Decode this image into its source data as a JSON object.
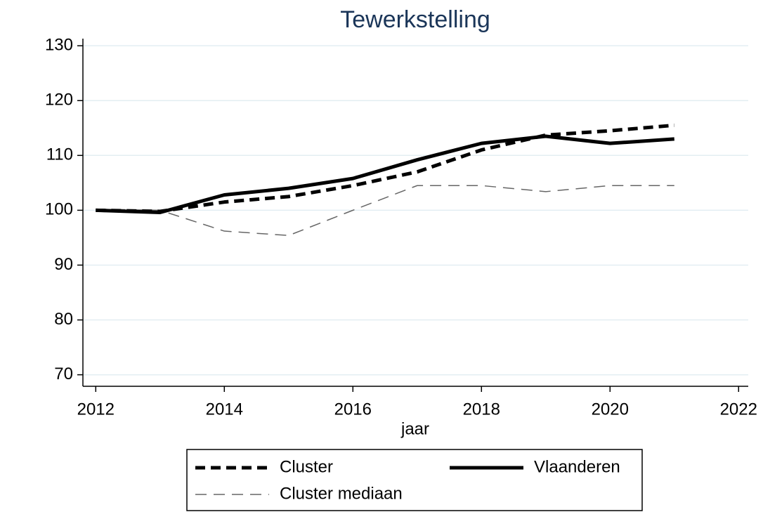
{
  "chart_data": {
    "type": "line",
    "title": "Tewerkstelling",
    "x_label": "jaar",
    "x": [
      2012,
      2013,
      2014,
      2015,
      2016,
      2017,
      2018,
      2019,
      2020,
      2021
    ],
    "series": [
      {
        "name": "Cluster",
        "color": "#000000",
        "style": "dashed-thick",
        "values": [
          100,
          99.8,
          101.5,
          102.5,
          104.5,
          107,
          111,
          113.7,
          114.5,
          115.5
        ]
      },
      {
        "name": "Vlaanderen",
        "color": "#000000",
        "style": "solid-thick",
        "values": [
          100,
          99.6,
          102.8,
          104,
          105.8,
          109.2,
          112.2,
          113.5,
          112.2,
          113
        ]
      },
      {
        "name": "Cluster mediaan",
        "color": "#666666",
        "style": "dashed-thin",
        "values": [
          100.2,
          100,
          96.2,
          95.4,
          100,
          104.5,
          104.5,
          103.4,
          104.5,
          104.5
        ]
      }
    ],
    "xlim": [
      2011.8,
      2022.15
    ],
    "xticks": [
      2012,
      2014,
      2016,
      2018,
      2020,
      2022
    ],
    "ylim": [
      67.9,
      131.3
    ],
    "yticks": [
      70,
      80,
      90,
      100,
      110,
      120,
      130
    ],
    "grid": true,
    "legend": "bottom"
  }
}
